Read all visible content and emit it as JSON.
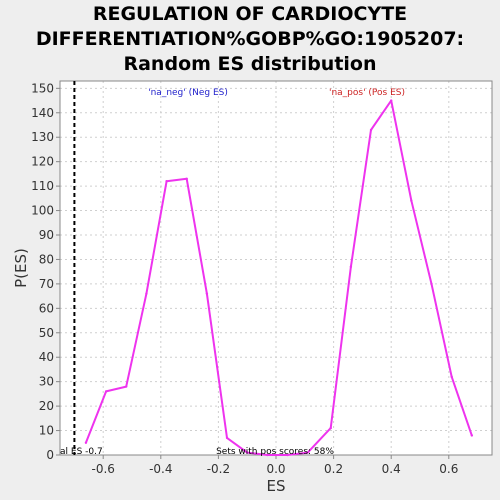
{
  "chart_data": {
    "type": "line",
    "title_lines": [
      "REGULATION OF CARDIOCYTE",
      "DIFFERENTIATION%GOBP%GO:1905207:",
      "Random ES distribution"
    ],
    "xlabel": "ES",
    "ylabel": "P(ES)",
    "xlim": [
      -0.75,
      0.75
    ],
    "ylim": [
      0,
      153
    ],
    "x_ticks": [
      -0.6,
      -0.4,
      -0.2,
      0.0,
      0.2,
      0.4,
      0.6
    ],
    "x_tick_labels": [
      "-0.6",
      "-0.4",
      "-0.2",
      "0.0",
      "0.2",
      "0.4",
      "0.6"
    ],
    "y_ticks": [
      0,
      10,
      20,
      30,
      40,
      50,
      60,
      70,
      80,
      90,
      100,
      110,
      120,
      130,
      140,
      150
    ],
    "grid": true,
    "series": [
      {
        "name": "'na_neg' (Neg ES)",
        "color": "#ee33ee",
        "x": [
          -0.66,
          -0.59,
          -0.52,
          -0.45,
          -0.38,
          -0.31,
          -0.24,
          -0.17,
          -0.1,
          -0.03,
          0.04,
          0.11,
          0.19,
          0.26,
          0.33,
          0.4,
          0.47,
          0.54,
          0.61,
          0.68
        ],
        "y": [
          5,
          26,
          28,
          66,
          112,
          113,
          66,
          7,
          1,
          0,
          0,
          1,
          11,
          77,
          133,
          145,
          104,
          70,
          32,
          8
        ]
      }
    ],
    "legend": [
      {
        "label": "'na_neg' (Neg ES)",
        "color": "#2222cc"
      },
      {
        "label": "'na_pos' (Pos ES)",
        "color": "#cc2222"
      }
    ],
    "marker_line_x": -0.7,
    "annotation_left": "al ES -0.7",
    "annotation_center": "Sets with pos scores: 58%"
  }
}
